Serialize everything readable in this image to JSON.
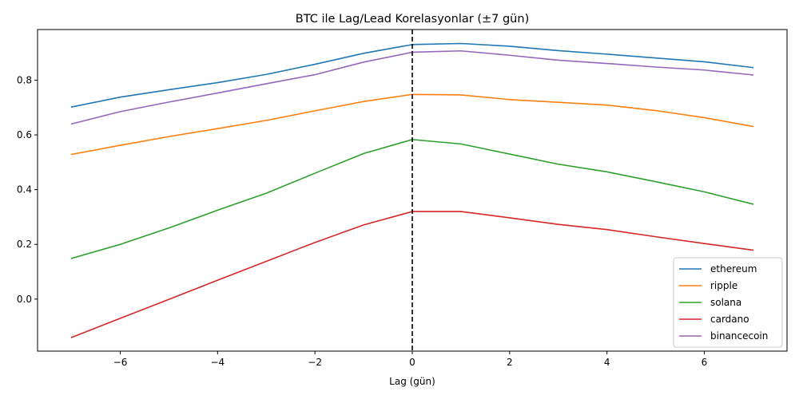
{
  "chart_data": {
    "type": "line",
    "title": "BTC ile Lag/Lead Korelasyonlar (±7 gün)",
    "xlabel": "Lag (gün)",
    "ylabel": "",
    "xlim": [
      -7.7,
      7.7
    ],
    "ylim": [
      -0.19,
      0.985
    ],
    "xticks": [
      -6,
      -4,
      -2,
      0,
      2,
      4,
      6
    ],
    "xtick_labels": [
      "−6",
      "−4",
      "−2",
      "0",
      "2",
      "4",
      "6"
    ],
    "yticks": [
      0.0,
      0.2,
      0.4,
      0.6,
      0.8
    ],
    "ytick_labels": [
      "0.0",
      "0.2",
      "0.4",
      "0.6",
      "0.8"
    ],
    "grid": false,
    "legend_position": "bottom-right",
    "vline": {
      "x": 0,
      "style": "dashed",
      "color": "#000000"
    },
    "x": [
      -7,
      -6,
      -5,
      -4,
      -3,
      -2,
      -1,
      0,
      1,
      2,
      3,
      4,
      5,
      6,
      7
    ],
    "series": [
      {
        "name": "ethereum",
        "color": "#1f77b4",
        "values": [
          0.702,
          0.738,
          0.765,
          0.791,
          0.821,
          0.858,
          0.898,
          0.93,
          0.934,
          0.924,
          0.908,
          0.895,
          0.881,
          0.867,
          0.846
        ]
      },
      {
        "name": "ripple",
        "color": "#ff7f0e",
        "values": [
          0.529,
          0.562,
          0.594,
          0.623,
          0.653,
          0.688,
          0.722,
          0.748,
          0.746,
          0.729,
          0.719,
          0.709,
          0.689,
          0.663,
          0.631
        ]
      },
      {
        "name": "solana",
        "color": "#2ca02c",
        "values": [
          0.149,
          0.2,
          0.26,
          0.325,
          0.387,
          0.46,
          0.532,
          0.583,
          0.567,
          0.53,
          0.493,
          0.465,
          0.429,
          0.392,
          0.347
        ]
      },
      {
        "name": "cardano",
        "color": "#d62728",
        "values": [
          -0.14,
          -0.07,
          -0.001,
          0.069,
          0.138,
          0.207,
          0.271,
          0.32,
          0.32,
          0.297,
          0.273,
          0.254,
          0.228,
          0.203,
          0.179
        ]
      },
      {
        "name": "binancecoin",
        "color": "#9467bd",
        "values": [
          0.64,
          0.685,
          0.72,
          0.753,
          0.787,
          0.82,
          0.866,
          0.902,
          0.907,
          0.891,
          0.873,
          0.861,
          0.848,
          0.837,
          0.819
        ]
      }
    ]
  }
}
